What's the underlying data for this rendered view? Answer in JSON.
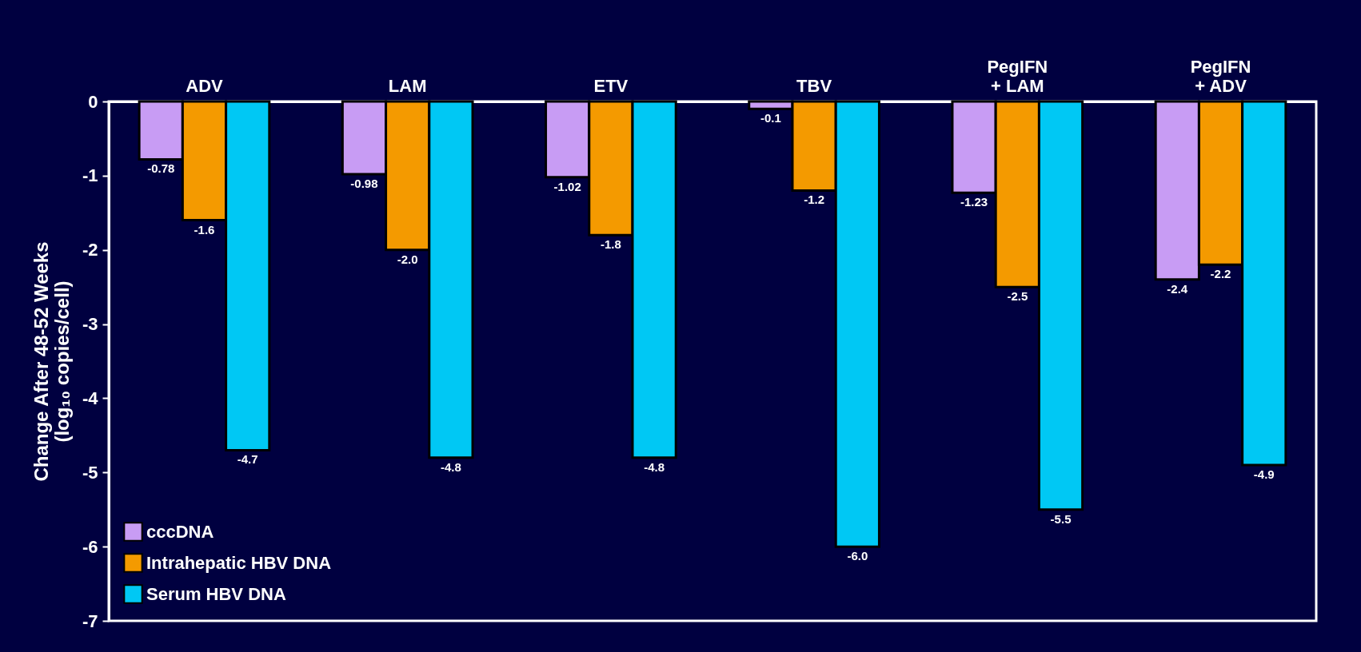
{
  "chart_data": {
    "type": "bar",
    "categories": [
      "ADV",
      "LAM",
      "ETV",
      "TBV",
      "PegIFN + LAM",
      "PegIFN + ADV"
    ],
    "ylabel": "Change After 48-52 Weeks (log₁₀ copies/cell)",
    "ylim": [
      -7,
      0
    ],
    "yticks": [
      0,
      -1,
      -2,
      -3,
      -4,
      -5,
      -6,
      -7
    ],
    "series": [
      {
        "name": "cccDNA",
        "color": "#c89cf4",
        "values": [
          -0.78,
          -0.98,
          -1.02,
          -0.1,
          -1.23,
          -2.4
        ],
        "value_labels": [
          "-0.78",
          "-0.98",
          "-1.02",
          "-0.1",
          "-1.23",
          "-2.4"
        ]
      },
      {
        "name": "Intrahepatic HBV DNA",
        "color": "#f49a00",
        "values": [
          -1.6,
          -2.0,
          -1.8,
          -1.2,
          -2.5,
          -2.2
        ],
        "value_labels": [
          "-1.6",
          "-2.0",
          "-1.8",
          "-1.2",
          "-2.5",
          "-2.2"
        ]
      },
      {
        "name": "Serum HBV DNA",
        "color": "#00c8f4",
        "values": [
          -4.7,
          -4.8,
          -4.8,
          -6.0,
          -5.5,
          -4.9
        ],
        "value_labels": [
          "-4.7",
          "-4.8",
          "-4.8",
          "-6.0",
          "-5.5",
          "-4.9"
        ]
      }
    ],
    "grid": false,
    "legend": "bottom left"
  }
}
